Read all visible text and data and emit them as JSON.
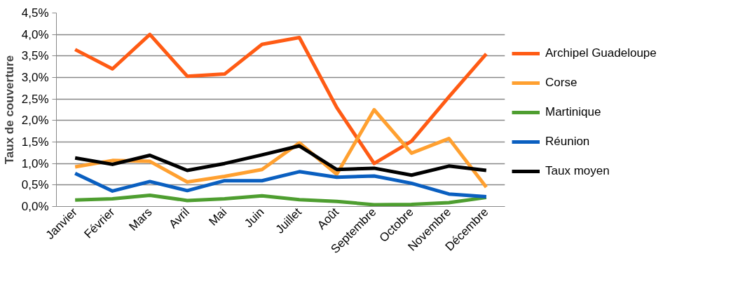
{
  "chart_data": {
    "type": "line",
    "ylabel": "Taux de couverture",
    "categories": [
      "Janvier",
      "Février",
      "Mars",
      "Avril",
      "Mai",
      "Juin",
      "Juillet",
      "Août",
      "Septembre",
      "Octobre",
      "Novembre",
      "Décembre"
    ],
    "series": [
      {
        "name": "Archipel Guadeloupe",
        "color": "#ff5b14",
        "values": [
          3.65,
          3.2,
          4.0,
          3.03,
          3.08,
          3.77,
          3.93,
          2.3,
          1.0,
          1.52,
          2.55,
          3.55
        ]
      },
      {
        "name": "Corse",
        "color": "#ffa030",
        "values": [
          0.92,
          1.07,
          1.05,
          0.57,
          0.7,
          0.86,
          1.48,
          0.75,
          2.25,
          1.24,
          1.58,
          0.45
        ]
      },
      {
        "name": "Martinique",
        "color": "#4e9e30",
        "values": [
          0.15,
          0.18,
          0.26,
          0.14,
          0.18,
          0.25,
          0.16,
          0.12,
          0.04,
          0.05,
          0.09,
          0.21
        ]
      },
      {
        "name": "Réunion",
        "color": "#0a5fc0",
        "values": [
          0.77,
          0.36,
          0.58,
          0.37,
          0.6,
          0.6,
          0.81,
          0.68,
          0.71,
          0.54,
          0.29,
          0.23
        ]
      },
      {
        "name": "Taux moyen",
        "color": "#000000",
        "values": [
          1.13,
          0.98,
          1.19,
          0.84,
          1.0,
          1.2,
          1.41,
          0.86,
          0.89,
          0.73,
          0.94,
          0.84
        ]
      }
    ],
    "ylim": [
      0,
      4.5
    ],
    "yticks": [
      {
        "value": 0,
        "label": "0,0%"
      },
      {
        "value": 0.5,
        "label": "0,5%"
      },
      {
        "value": 1,
        "label": "1,0%"
      },
      {
        "value": 1.5,
        "label": "1,5%"
      },
      {
        "value": 2,
        "label": "2,0%"
      },
      {
        "value": 2.5,
        "label": "2,5%"
      },
      {
        "value": 3,
        "label": "3,0%"
      },
      {
        "value": 3.5,
        "label": "3,5%"
      },
      {
        "value": 4,
        "label": "4,0%"
      },
      {
        "value": 4.5,
        "label": "4,5%"
      }
    ],
    "grid": "y",
    "legend": "right",
    "marker": "none",
    "line_style": "solid"
  }
}
